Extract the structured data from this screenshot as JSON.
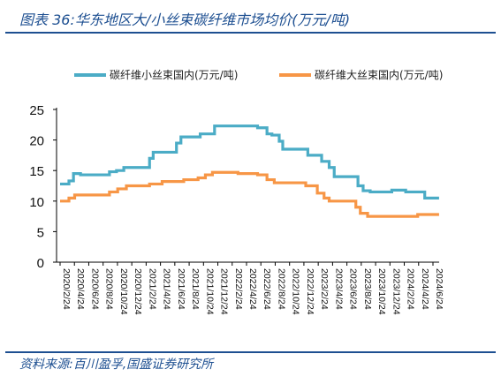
{
  "header": {
    "title": "图表 36:华东地区大/小丝束碳纤维市场均价(万元/吨)"
  },
  "footer": {
    "source": "资料来源:百川盈孚,国盛证券研究所"
  },
  "colors": {
    "small_tow": "#4bacc6",
    "large_tow": "#f79646",
    "rule": "#1d4f91"
  },
  "chart_data": {
    "type": "line",
    "title": "",
    "xlabel": "",
    "ylabel": "",
    "ylim": [
      0,
      25
    ],
    "yticks": [
      0,
      5,
      10,
      15,
      20,
      25
    ],
    "grid": false,
    "legend": "top",
    "x_tick_labels": [
      "2020/2/24",
      "2020/4/24",
      "2020/6/24",
      "2020/8/24",
      "2020/10/24",
      "2020/12/24",
      "2021/2/24",
      "2021/4/24",
      "2021/6/24",
      "2021/8/24",
      "2021/10/24",
      "2021/12/24",
      "2022/2/24",
      "2022/4/24",
      "2022/6/24",
      "2022/8/24",
      "2022/10/24",
      "2022/12/24",
      "2023/2/24",
      "2023/4/24",
      "2023/6/24",
      "2023/8/24",
      "2023/10/24",
      "2023/12/24",
      "2024/2/24",
      "2024/4/24",
      "2024/6/24"
    ],
    "series": [
      {
        "name": "碳纤维小丝束国内(万元/吨)",
        "points": [
          [
            "2020/2/24",
            12.8
          ],
          [
            "2020/4/1",
            12.8
          ],
          [
            "2020/4/1",
            13.3
          ],
          [
            "2020/4/20",
            13.3
          ],
          [
            "2020/4/20",
            14.5
          ],
          [
            "2020/5/20",
            14.5
          ],
          [
            "2020/5/20",
            14.3
          ],
          [
            "2020/9/20",
            14.3
          ],
          [
            "2020/9/20",
            14.8
          ],
          [
            "2020/10/20",
            14.8
          ],
          [
            "2020/10/20",
            15.0
          ],
          [
            "2020/11/20",
            15.0
          ],
          [
            "2020/11/20",
            15.5
          ],
          [
            "2021/3/10",
            15.5
          ],
          [
            "2021/3/10",
            17.0
          ],
          [
            "2021/3/25",
            17.0
          ],
          [
            "2021/3/25",
            18.0
          ],
          [
            "2021/7/1",
            18.0
          ],
          [
            "2021/7/1",
            19.5
          ],
          [
            "2021/7/20",
            19.5
          ],
          [
            "2021/7/20",
            20.5
          ],
          [
            "2021/10/10",
            20.5
          ],
          [
            "2021/10/10",
            21.0
          ],
          [
            "2021/12/10",
            21.0
          ],
          [
            "2021/12/10",
            22.3
          ],
          [
            "2022/6/10",
            22.3
          ],
          [
            "2022/6/10",
            22.0
          ],
          [
            "2022/7/20",
            22.0
          ],
          [
            "2022/7/20",
            21.0
          ],
          [
            "2022/8/10",
            21.0
          ],
          [
            "2022/8/10",
            20.8
          ],
          [
            "2022/9/10",
            20.8
          ],
          [
            "2022/9/10",
            19.8
          ],
          [
            "2022/9/25",
            19.8
          ],
          [
            "2022/9/25",
            18.5
          ],
          [
            "2023/1/10",
            18.5
          ],
          [
            "2023/1/10",
            17.5
          ],
          [
            "2023/3/10",
            17.5
          ],
          [
            "2023/3/10",
            16.5
          ],
          [
            "2023/4/10",
            16.5
          ],
          [
            "2023/4/10",
            15.5
          ],
          [
            "2023/5/1",
            15.5
          ],
          [
            "2023/5/1",
            14.0
          ],
          [
            "2023/8/10",
            14.0
          ],
          [
            "2023/8/10",
            12.5
          ],
          [
            "2023/9/1",
            12.5
          ],
          [
            "2023/9/1",
            11.7
          ],
          [
            "2023/10/1",
            11.7
          ],
          [
            "2023/10/1",
            11.5
          ],
          [
            "2024/1/1",
            11.5
          ],
          [
            "2024/1/1",
            11.8
          ],
          [
            "2024/3/1",
            11.8
          ],
          [
            "2024/3/1",
            11.5
          ],
          [
            "2024/5/20",
            11.5
          ],
          [
            "2024/5/20",
            10.5
          ],
          [
            "2024/7/20",
            10.5
          ]
        ]
      },
      {
        "name": "碳纤维大丝束国内(万元/吨)",
        "points": [
          [
            "2020/2/24",
            10.0
          ],
          [
            "2020/4/1",
            10.0
          ],
          [
            "2020/4/1",
            10.5
          ],
          [
            "2020/4/25",
            10.5
          ],
          [
            "2020/4/25",
            11.0
          ],
          [
            "2020/9/20",
            11.0
          ],
          [
            "2020/9/20",
            11.5
          ],
          [
            "2020/10/25",
            11.5
          ],
          [
            "2020/10/25",
            12.0
          ],
          [
            "2020/12/1",
            12.0
          ],
          [
            "2020/12/1",
            12.5
          ],
          [
            "2021/3/10",
            12.5
          ],
          [
            "2021/3/10",
            12.8
          ],
          [
            "2021/5/1",
            12.8
          ],
          [
            "2021/5/1",
            13.2
          ],
          [
            "2021/8/1",
            13.2
          ],
          [
            "2021/8/1",
            13.5
          ],
          [
            "2021/10/1",
            13.5
          ],
          [
            "2021/10/1",
            13.8
          ],
          [
            "2021/11/1",
            13.8
          ],
          [
            "2021/11/1",
            14.3
          ],
          [
            "2021/12/1",
            14.3
          ],
          [
            "2021/12/1",
            14.7
          ],
          [
            "2022/3/20",
            14.7
          ],
          [
            "2022/3/20",
            14.5
          ],
          [
            "2022/6/10",
            14.5
          ],
          [
            "2022/6/10",
            14.3
          ],
          [
            "2022/7/20",
            14.3
          ],
          [
            "2022/7/20",
            13.5
          ],
          [
            "2022/8/20",
            13.5
          ],
          [
            "2022/8/20",
            13.0
          ],
          [
            "2023/1/1",
            13.0
          ],
          [
            "2023/1/1",
            12.5
          ],
          [
            "2023/2/20",
            12.5
          ],
          [
            "2023/2/20",
            11.3
          ],
          [
            "2023/3/20",
            11.3
          ],
          [
            "2023/3/20",
            10.5
          ],
          [
            "2023/4/10",
            10.5
          ],
          [
            "2023/4/10",
            10.0
          ],
          [
            "2023/8/1",
            10.0
          ],
          [
            "2023/8/1",
            9.0
          ],
          [
            "2023/8/20",
            9.0
          ],
          [
            "2023/8/20",
            8.0
          ],
          [
            "2023/9/20",
            8.0
          ],
          [
            "2023/9/20",
            7.5
          ],
          [
            "2024/4/20",
            7.5
          ],
          [
            "2024/4/20",
            7.8
          ],
          [
            "2024/7/20",
            7.8
          ]
        ]
      }
    ]
  }
}
